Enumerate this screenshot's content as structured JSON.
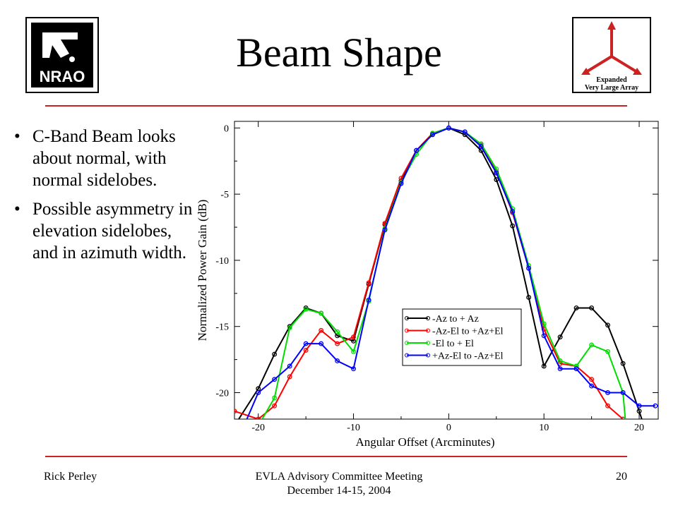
{
  "slide": {
    "title": "Beam Shape",
    "left_logo": "NRAO",
    "right_logo": {
      "line1": "Expanded",
      "line2": "Very Large Array"
    },
    "bullets": [
      "C-Band Beam looks about normal, with normal sidelobes.",
      "Possible asymmetry in elevation sidelobes, and in azimuth width."
    ],
    "footer": {
      "author": "Rick Perley",
      "meeting": "EVLA Advisory Committee Meeting",
      "date": "December 14-15, 2004",
      "page": "20"
    },
    "colors": {
      "rule": "#cc2222"
    }
  },
  "chart_data": {
    "type": "line",
    "xlabel": "Angular Offset (Arcminutes)",
    "ylabel": "Normalized Power Gain (dB)",
    "xlim": [
      -22.5,
      22
    ],
    "ylim": [
      -22,
      0.5
    ],
    "xticks": [
      -20,
      -10,
      0,
      10,
      20
    ],
    "yticks": [
      0,
      -5,
      -10,
      -15,
      -20
    ],
    "grid": false,
    "legend_position": "lower-right",
    "series": [
      {
        "name": "-Az to + Az",
        "color": "#000000",
        "x": [
          -22.5,
          -20,
          -18.3,
          -16.7,
          -15,
          -13.4,
          -11.7,
          -10,
          -8.4,
          -6.7,
          -5,
          -3.4,
          -1.7,
          0,
          1.7,
          3.4,
          5,
          6.7,
          8.4,
          10,
          11.7,
          13.4,
          15,
          16.7,
          18.3,
          20,
          20.5
        ],
        "y": [
          -22.5,
          -19.7,
          -17.1,
          -15,
          -13.6,
          -14,
          -15.7,
          -16.1,
          -11.8,
          -7.3,
          -4,
          -1.7,
          -0.5,
          0,
          -0.5,
          -1.7,
          -3.9,
          -7.4,
          -12.8,
          -18,
          -15.8,
          -13.6,
          -13.6,
          -14.9,
          -17.8,
          -21.4,
          -22.5
        ]
      },
      {
        "name": "-Az-El to +Az+El",
        "color": "#ff0000",
        "x": [
          -22.5,
          -20,
          -18.3,
          -16.7,
          -15,
          -13.4,
          -11.7,
          -10,
          -8.4,
          -6.7,
          -5,
          -3.4,
          -1.7,
          0,
          1.7,
          3.4,
          5,
          6.7,
          8.4,
          10,
          11.7,
          13.4,
          15,
          16.7,
          18.3,
          18.8
        ],
        "y": [
          -21.4,
          -22,
          -21,
          -18.8,
          -16.8,
          -15.3,
          -16.3,
          -15.8,
          -11.7,
          -7.2,
          -3.8,
          -1.7,
          -0.4,
          0,
          -0.3,
          -1.3,
          -3.3,
          -6.4,
          -10.6,
          -15.2,
          -17.8,
          -18,
          -19,
          -21,
          -22,
          -22.5
        ]
      },
      {
        "name": "-El to + El",
        "color": "#00dd00",
        "x": [
          -20.7,
          -20,
          -18.3,
          -16.7,
          -15,
          -13.4,
          -11.7,
          -10,
          -8.4,
          -6.7,
          -5,
          -3.4,
          -1.7,
          0,
          1.7,
          3.4,
          5,
          6.7,
          8.4,
          10,
          11.7,
          13.4,
          15,
          16.7,
          18.3,
          18.6
        ],
        "y": [
          -22.5,
          -22.5,
          -20.4,
          -15.1,
          -13.7,
          -14,
          -15.4,
          -16.9,
          -13.1,
          -7.6,
          -4.1,
          -2,
          -0.4,
          0,
          -0.3,
          -1.2,
          -3.1,
          -6.1,
          -10.4,
          -14.8,
          -17.6,
          -18,
          -16.4,
          -16.9,
          -20,
          -22.5
        ]
      },
      {
        "name": "+Az-El to -Az+El",
        "color": "#0000ff",
        "x": [
          -21.5,
          -20,
          -18.3,
          -16.7,
          -15,
          -13.4,
          -11.7,
          -10,
          -8.4,
          -6.7,
          -5,
          -3.4,
          -1.7,
          0,
          1.7,
          3.4,
          5,
          6.7,
          8.4,
          10,
          11.7,
          13.4,
          15,
          16.7,
          18.3,
          20,
          21.7
        ],
        "y": [
          -22.5,
          -20,
          -19,
          -18,
          -16.3,
          -16.3,
          -17.6,
          -18.2,
          -13,
          -7.7,
          -4.2,
          -1.7,
          -0.5,
          0,
          -0.3,
          -1.4,
          -3.4,
          -6.3,
          -10.6,
          -15.7,
          -18.2,
          -18.2,
          -19.5,
          -20,
          -20,
          -21,
          -21
        ]
      }
    ]
  }
}
